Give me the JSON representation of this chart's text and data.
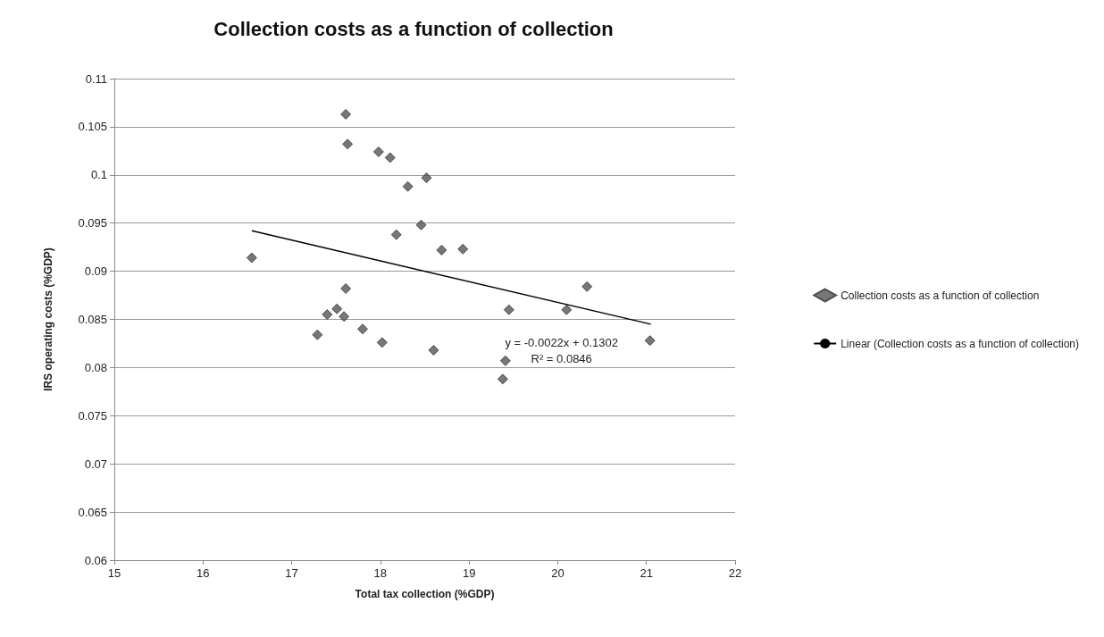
{
  "chart_data": {
    "type": "scatter",
    "title": "Collection costs as a function of collection",
    "xlabel": "Total tax collection (%GDP)",
    "ylabel": "IRS operating costs (%GDP)",
    "xlim": [
      15,
      22
    ],
    "xticks": [
      15,
      16,
      17,
      18,
      19,
      20,
      21,
      22
    ],
    "ylim": [
      0.06,
      0.11
    ],
    "yticks": [
      0.06,
      0.065,
      0.07,
      0.075,
      0.08,
      0.085,
      0.09,
      0.095,
      0.1,
      0.105,
      0.11
    ],
    "grid": "y",
    "legend": "right",
    "marker": "diamond",
    "series": [
      {
        "name": "Collection costs as a function of collection",
        "color": "#555555",
        "x": [
          17.61,
          17.63,
          17.98,
          18.11,
          18.31,
          18.52,
          18.18,
          18.46,
          18.69,
          16.55,
          17.61,
          18.93,
          20.33,
          17.4,
          17.51,
          17.59,
          17.29,
          17.8,
          18.02,
          18.6,
          19.45,
          20.1,
          21.04,
          19.41,
          19.38
        ],
        "values": [
          0.1063,
          0.1032,
          0.1024,
          0.1018,
          0.0988,
          0.0997,
          0.0938,
          0.0948,
          0.0922,
          0.0914,
          0.0882,
          0.0923,
          0.0884,
          0.0855,
          0.0861,
          0.0853,
          0.0834,
          0.084,
          0.0826,
          0.0818,
          0.086,
          0.086,
          0.0828,
          0.0807,
          0.0788
        ]
      },
      {
        "name": "Linear (Collection costs as a function of collection)",
        "type": "line",
        "color": "#000000",
        "marker": "none",
        "x": [
          16.55,
          21.05
        ],
        "values": [
          0.0942,
          0.0845
        ]
      }
    ],
    "annotations": [
      "y = -0.0022x + 0.1302\nR² = 0.0846"
    ]
  }
}
